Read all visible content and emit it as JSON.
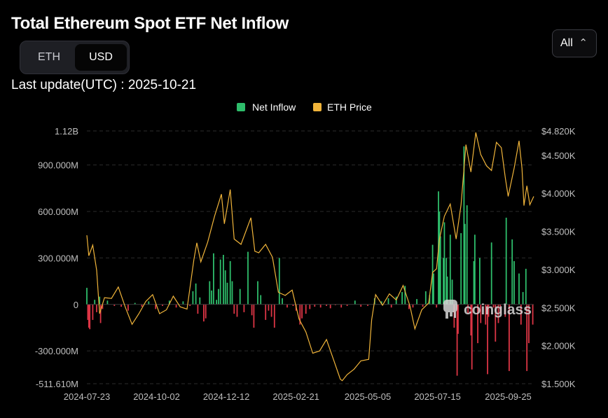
{
  "title": "Total Ethereum Spot ETF Net Inflow",
  "unit_toggle": {
    "options": [
      "ETH",
      "USD"
    ],
    "selected": "USD"
  },
  "range_select": {
    "value": "All",
    "icon": "chevron-up-down-icon"
  },
  "last_update": "Last update(UTC) : 2025-10-21",
  "watermark": "coinglass",
  "colors": {
    "inflow_positive": "#2ebd6b",
    "inflow_negative": "#dc3545",
    "price_line": "#f0b43a",
    "background": "#000000",
    "grid": "#2b2b2b",
    "axis_text": "#bfbfbf"
  },
  "chart_data": {
    "type": "bar",
    "legend": [
      "Net Inflow",
      "ETH Price"
    ],
    "legend_position": "top-center",
    "grid": true,
    "x_ticks": [
      "2024-07-23",
      "2024-10-02",
      "2024-12-12",
      "2025-02-21",
      "2025-05-05",
      "2025-07-15",
      "2025-09-25"
    ],
    "x_range": [
      "2024-07-23",
      "2025-10-21"
    ],
    "y_left": {
      "ticks": [
        "1.12B",
        "900.000M",
        "600.000M",
        "300.000M",
        "0",
        "-300.000M",
        "-511.610M"
      ],
      "range": [
        -511610000,
        1120000000
      ]
    },
    "y_right": {
      "ticks": [
        "$4.820K",
        "$4.500K",
        "$4.000K",
        "$3.500K",
        "$3.000K",
        "$2.500K",
        "$2.000K",
        "$1.500K"
      ],
      "range": [
        1500,
        4820
      ]
    },
    "series": [
      {
        "name": "Net Inflow",
        "type": "bar",
        "unit": "USD",
        "axis": "left",
        "points": [
          [
            "2024-07-23",
            107000000
          ],
          [
            "2024-07-24",
            -100000000
          ],
          [
            "2024-07-25",
            -150000000
          ],
          [
            "2024-07-26",
            -160000000
          ],
          [
            "2024-07-29",
            -100000000
          ],
          [
            "2024-07-31",
            30000000
          ],
          [
            "2024-08-02",
            -50000000
          ],
          [
            "2024-08-05",
            50000000
          ],
          [
            "2024-08-06",
            -120000000
          ],
          [
            "2024-08-08",
            -30000000
          ],
          [
            "2024-08-13",
            25000000
          ],
          [
            "2024-08-20",
            -10000000
          ],
          [
            "2024-08-27",
            -15000000
          ],
          [
            "2024-09-03",
            -40000000
          ],
          [
            "2024-09-10",
            10000000
          ],
          [
            "2024-09-17",
            -15000000
          ],
          [
            "2024-09-24",
            20000000
          ],
          [
            "2024-10-01",
            -30000000
          ],
          [
            "2024-10-08",
            -10000000
          ],
          [
            "2024-10-15",
            25000000
          ],
          [
            "2024-10-22",
            -20000000
          ],
          [
            "2024-10-29",
            20000000
          ],
          [
            "2024-11-05",
            -10000000
          ],
          [
            "2024-11-08",
            85000000
          ],
          [
            "2024-11-11",
            135000000
          ],
          [
            "2024-11-13",
            -60000000
          ],
          [
            "2024-11-15",
            45000000
          ],
          [
            "2024-11-19",
            -110000000
          ],
          [
            "2024-11-21",
            -90000000
          ],
          [
            "2024-11-25",
            150000000
          ],
          [
            "2024-11-27",
            90000000
          ],
          [
            "2024-11-29",
            330000000
          ],
          [
            "2024-12-02",
            30000000
          ],
          [
            "2024-12-04",
            100000000
          ],
          [
            "2024-12-06",
            290000000
          ],
          [
            "2024-12-09",
            320000000
          ],
          [
            "2024-12-11",
            220000000
          ],
          [
            "2024-12-13",
            140000000
          ],
          [
            "2024-12-16",
            280000000
          ],
          [
            "2024-12-18",
            150000000
          ],
          [
            "2024-12-20",
            -60000000
          ],
          [
            "2024-12-23",
            -80000000
          ],
          [
            "2024-12-26",
            100000000
          ],
          [
            "2024-12-30",
            -50000000
          ],
          [
            "2025-01-03",
            340000000
          ],
          [
            "2025-01-07",
            -70000000
          ],
          [
            "2025-01-09",
            -150000000
          ],
          [
            "2025-01-13",
            150000000
          ],
          [
            "2025-01-16",
            60000000
          ],
          [
            "2025-01-21",
            -100000000
          ],
          [
            "2025-01-24",
            -40000000
          ],
          [
            "2025-01-27",
            -80000000
          ],
          [
            "2025-01-30",
            -150000000
          ],
          [
            "2025-02-04",
            300000000
          ],
          [
            "2025-02-07",
            40000000
          ],
          [
            "2025-02-12",
            -20000000
          ],
          [
            "2025-02-18",
            -10000000
          ],
          [
            "2025-02-21",
            -40000000
          ],
          [
            "2025-02-25",
            -130000000
          ],
          [
            "2025-02-27",
            -90000000
          ],
          [
            "2025-03-03",
            -60000000
          ],
          [
            "2025-03-07",
            -30000000
          ],
          [
            "2025-03-12",
            -15000000
          ],
          [
            "2025-03-18",
            -20000000
          ],
          [
            "2025-03-24",
            -10000000
          ],
          [
            "2025-03-28",
            -25000000
          ],
          [
            "2025-04-02",
            -5000000
          ],
          [
            "2025-04-08",
            -20000000
          ],
          [
            "2025-04-14",
            -10000000
          ],
          [
            "2025-04-22",
            25000000
          ],
          [
            "2025-04-28",
            -15000000
          ],
          [
            "2025-05-05",
            -10000000
          ],
          [
            "2025-05-12",
            40000000
          ],
          [
            "2025-05-19",
            20000000
          ],
          [
            "2025-05-26",
            40000000
          ],
          [
            "2025-05-29",
            -20000000
          ],
          [
            "2025-06-03",
            50000000
          ],
          [
            "2025-06-09",
            80000000
          ],
          [
            "2025-06-12",
            120000000
          ],
          [
            "2025-06-16",
            -30000000
          ],
          [
            "2025-06-20",
            -20000000
          ],
          [
            "2025-06-24",
            35000000
          ],
          [
            "2025-06-30",
            -15000000
          ],
          [
            "2025-07-03",
            85000000
          ],
          [
            "2025-07-07",
            60000000
          ],
          [
            "2025-07-10",
            385000000
          ],
          [
            "2025-07-11",
            200000000
          ],
          [
            "2025-07-14",
            -20000000
          ],
          [
            "2025-07-16",
            730000000
          ],
          [
            "2025-07-17",
            600000000
          ],
          [
            "2025-07-18",
            440000000
          ],
          [
            "2025-07-21",
            300000000
          ],
          [
            "2025-07-22",
            530000000
          ],
          [
            "2025-07-24",
            300000000
          ],
          [
            "2025-07-25",
            180000000
          ],
          [
            "2025-07-28",
            450000000
          ],
          [
            "2025-07-30",
            160000000
          ],
          [
            "2025-08-01",
            -150000000
          ],
          [
            "2025-08-04",
            -460000000
          ],
          [
            "2025-08-05",
            -190000000
          ],
          [
            "2025-08-08",
            460000000
          ],
          [
            "2025-08-11",
            1020000000
          ],
          [
            "2025-08-12",
            520000000
          ],
          [
            "2025-08-14",
            640000000
          ],
          [
            "2025-08-15",
            -60000000
          ],
          [
            "2025-08-18",
            -200000000
          ],
          [
            "2025-08-19",
            -420000000
          ],
          [
            "2025-08-21",
            280000000
          ],
          [
            "2025-08-22",
            450000000
          ],
          [
            "2025-08-25",
            -250000000
          ],
          [
            "2025-08-27",
            300000000
          ],
          [
            "2025-08-28",
            -120000000
          ],
          [
            "2025-09-02",
            -130000000
          ],
          [
            "2025-09-04",
            -450000000
          ],
          [
            "2025-09-05",
            -80000000
          ],
          [
            "2025-09-08",
            400000000
          ],
          [
            "2025-09-10",
            -20000000
          ],
          [
            "2025-09-12",
            -240000000
          ],
          [
            "2025-09-15",
            -120000000
          ],
          [
            "2025-09-17",
            -60000000
          ],
          [
            "2025-09-22",
            -80000000
          ],
          [
            "2025-09-23",
            560000000
          ],
          [
            "2025-09-26",
            -430000000
          ],
          [
            "2025-09-29",
            420000000
          ],
          [
            "2025-10-01",
            280000000
          ],
          [
            "2025-10-06",
            200000000
          ],
          [
            "2025-10-08",
            -130000000
          ],
          [
            "2025-10-10",
            80000000
          ],
          [
            "2025-10-13",
            230000000
          ],
          [
            "2025-10-14",
            -430000000
          ],
          [
            "2025-10-16",
            -250000000
          ],
          [
            "2025-10-20",
            -130000000
          ]
        ]
      },
      {
        "name": "ETH Price",
        "type": "line",
        "unit": "USD",
        "axis": "right",
        "points": [
          [
            "2024-07-23",
            3450
          ],
          [
            "2024-07-25",
            3180
          ],
          [
            "2024-07-29",
            3320
          ],
          [
            "2024-08-02",
            2990
          ],
          [
            "2024-08-05",
            2420
          ],
          [
            "2024-08-10",
            2630
          ],
          [
            "2024-08-17",
            2620
          ],
          [
            "2024-08-24",
            2770
          ],
          [
            "2024-08-31",
            2510
          ],
          [
            "2024-09-07",
            2280
          ],
          [
            "2024-09-14",
            2420
          ],
          [
            "2024-09-21",
            2580
          ],
          [
            "2024-09-28",
            2670
          ],
          [
            "2024-10-05",
            2420
          ],
          [
            "2024-10-12",
            2470
          ],
          [
            "2024-10-19",
            2650
          ],
          [
            "2024-10-26",
            2510
          ],
          [
            "2024-11-02",
            2480
          ],
          [
            "2024-11-09",
            3130
          ],
          [
            "2024-11-12",
            3350
          ],
          [
            "2024-11-16",
            3100
          ],
          [
            "2024-11-23",
            3360
          ],
          [
            "2024-11-30",
            3700
          ],
          [
            "2024-12-07",
            3990
          ],
          [
            "2024-12-10",
            3600
          ],
          [
            "2024-12-16",
            4050
          ],
          [
            "2024-12-20",
            3400
          ],
          [
            "2024-12-27",
            3330
          ],
          [
            "2025-01-06",
            3680
          ],
          [
            "2025-01-10",
            3240
          ],
          [
            "2025-01-14",
            3220
          ],
          [
            "2025-01-21",
            3330
          ],
          [
            "2025-01-28",
            3160
          ],
          [
            "2025-02-03",
            2700
          ],
          [
            "2025-02-10",
            2660
          ],
          [
            "2025-02-17",
            2730
          ],
          [
            "2025-02-24",
            2350
          ],
          [
            "2025-03-03",
            2180
          ],
          [
            "2025-03-10",
            1900
          ],
          [
            "2025-03-17",
            1930
          ],
          [
            "2025-03-24",
            2080
          ],
          [
            "2025-03-31",
            1820
          ],
          [
            "2025-04-07",
            1560
          ],
          [
            "2025-04-09",
            1540
          ],
          [
            "2025-04-14",
            1620
          ],
          [
            "2025-04-21",
            1690
          ],
          [
            "2025-04-28",
            1800
          ],
          [
            "2025-05-06",
            1820
          ],
          [
            "2025-05-09",
            2340
          ],
          [
            "2025-05-13",
            2670
          ],
          [
            "2025-05-20",
            2530
          ],
          [
            "2025-05-27",
            2680
          ],
          [
            "2025-06-03",
            2600
          ],
          [
            "2025-06-10",
            2790
          ],
          [
            "2025-06-17",
            2520
          ],
          [
            "2025-06-22",
            2220
          ],
          [
            "2025-06-29",
            2470
          ],
          [
            "2025-07-06",
            2560
          ],
          [
            "2025-07-10",
            2960
          ],
          [
            "2025-07-14",
            3010
          ],
          [
            "2025-07-17",
            3400
          ],
          [
            "2025-07-22",
            3700
          ],
          [
            "2025-07-28",
            3860
          ],
          [
            "2025-08-03",
            3400
          ],
          [
            "2025-08-08",
            3850
          ],
          [
            "2025-08-13",
            4640
          ],
          [
            "2025-08-18",
            4280
          ],
          [
            "2025-08-23",
            4800
          ],
          [
            "2025-08-28",
            4510
          ],
          [
            "2025-09-03",
            4360
          ],
          [
            "2025-09-08",
            4300
          ],
          [
            "2025-09-13",
            4670
          ],
          [
            "2025-09-18",
            4600
          ],
          [
            "2025-09-22",
            4210
          ],
          [
            "2025-09-25",
            3960
          ],
          [
            "2025-10-01",
            4330
          ],
          [
            "2025-10-06",
            4690
          ],
          [
            "2025-10-09",
            4330
          ],
          [
            "2025-10-11",
            3840
          ],
          [
            "2025-10-14",
            4100
          ],
          [
            "2025-10-17",
            3850
          ],
          [
            "2025-10-21",
            3960
          ]
        ]
      }
    ]
  }
}
